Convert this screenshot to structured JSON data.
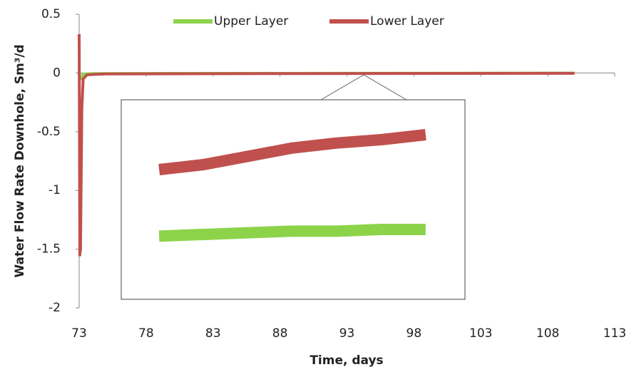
{
  "chart_data": [
    {
      "type": "line",
      "xlabel": "Time, days",
      "ylabel": "Water Flow Rate Downhole, Sm³/d",
      "xlim": [
        73,
        113
      ],
      "xticks": [
        73,
        78,
        83,
        88,
        93,
        98,
        103,
        108,
        113
      ],
      "ylim": [
        -2,
        0.5
      ],
      "yticks": [
        0.5,
        0,
        -0.5,
        -1,
        -1.5,
        -2
      ],
      "legend": "top",
      "series": [
        {
          "name": "Upper Layer",
          "color": "#8dd34a",
          "x": [
            73,
            73.05,
            73.15,
            73.3,
            74,
            80,
            90,
            100,
            110
          ],
          "values": [
            0,
            -0.03,
            -0.05,
            -0.01,
            -0.005,
            -0.004,
            -0.003,
            -0.002,
            -0.001
          ]
        },
        {
          "name": "Lower Layer",
          "color": "#c0504d",
          "x": [
            73,
            73.05,
            73.1,
            73.2,
            73.3,
            73.6,
            75,
            90,
            110
          ],
          "values": [
            0.33,
            -1.55,
            -1.5,
            -0.3,
            -0.05,
            -0.015,
            -0.008,
            -0.005,
            -0.003
          ]
        }
      ]
    },
    {
      "type": "line",
      "xlim": [
        93.95,
        94.65
      ],
      "ylim": [
        -0.016,
        -0.004
      ],
      "series": [
        {
          "color": "#c0504d",
          "x": [
            94,
            94.1,
            94.2,
            94.3,
            94.4,
            94.5,
            94.6
          ],
          "values": [
            -0.0082,
            -0.0079,
            -0.0074,
            -0.0069,
            -0.0066,
            -0.0064,
            -0.0061
          ]
        },
        {
          "color": "#8dd34a",
          "x": [
            94,
            94.1,
            94.2,
            94.3,
            94.4,
            94.5,
            94.6
          ],
          "values": [
            -0.0122,
            -0.0121,
            -0.012,
            -0.0119,
            -0.0119,
            -0.0118,
            -0.0118
          ]
        }
      ]
    }
  ]
}
